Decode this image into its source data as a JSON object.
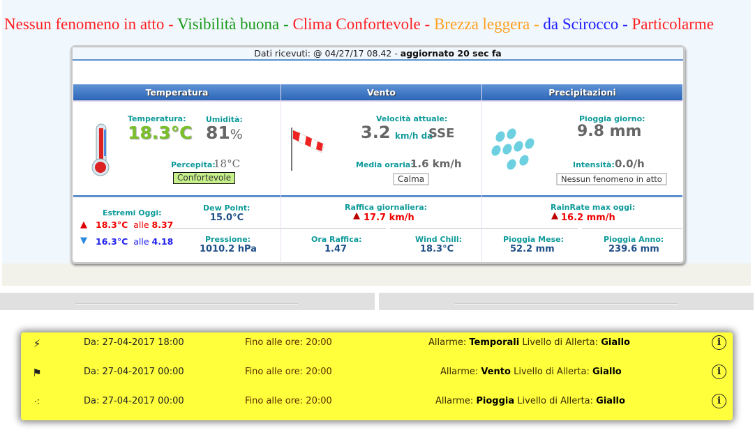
{
  "ticker": [
    {
      "text": "Nessun fenomeno in atto",
      "color": "#ff2020"
    },
    {
      "text": " - ",
      "color": "#ff2020"
    },
    {
      "text": "Visibilità buona",
      "color": "#1a9a1a"
    },
    {
      "text": " - ",
      "color": "#1a9a1a"
    },
    {
      "text": "Clima Confortevole",
      "color": "#ff2020"
    },
    {
      "text": " - ",
      "color": "#ff2020"
    },
    {
      "text": "Brezza leggera",
      "color": "#ffa020"
    },
    {
      "text": " - ",
      "color": "#ffa020"
    },
    {
      "text": "da Scirocco",
      "color": "#2020ff"
    },
    {
      "text": " - ",
      "color": "#2020ff"
    },
    {
      "text": "Particolarme",
      "color": "#ff2020"
    }
  ],
  "header": {
    "received_label": "Dati ricevuti: @ 04/27/17 08.42 - ",
    "updated": "aggiornato 20 sec fa"
  },
  "temperatura": {
    "title": "Temperatura",
    "temp_label": "Temperatura:",
    "temp": "18.3°C",
    "hum_label": "Umidità:",
    "hum": "81",
    "hum_unit": "%",
    "perc_label": "Percepita:",
    "perc": "18°C",
    "comfort": "Confortevole",
    "extremes_label": "Estremi Oggi:",
    "max": "18.3°C",
    "max_at": "alle",
    "max_time": "8.37",
    "min": "16.3°C",
    "min_at": "alle",
    "min_time": "4.18",
    "dew_label": "Dew Point:",
    "dew": "15.0°C",
    "press_label": "Pressione:",
    "press": "1010.2 hPa"
  },
  "vento": {
    "title": "Vento",
    "speed_label": "Velocità attuale:",
    "speed": "3.2",
    "speed_unit": "km/h da",
    "dir": "SSE",
    "avg_label": "Media oraria:",
    "avg": "1.6 km/h",
    "state": "Calma",
    "gust_label": "Raffica giornaliera:",
    "gust": "17.7 km/h",
    "gust_time_label": "Ora Raffica:",
    "gust_time": "1.47",
    "chill_label": "Wind Chill:",
    "chill": "18.3°C"
  },
  "precipitazioni": {
    "title": "Precipitazioni",
    "day_label": "Pioggia giorno:",
    "day": "9.8 mm",
    "int_label": "Intensità:",
    "int": "0.0/h",
    "state": "Nessun fenomeno in atto",
    "rr_label": "RainRate max oggi:",
    "rr": "16.2 mm/h",
    "month_label": "Pioggia Mese:",
    "month": "52.2 mm",
    "year_label": "Pioggia Anno:",
    "year": "239.6 mm"
  },
  "alerts": [
    {
      "icon": "lightning-icon",
      "from": "Da: 27-04-2017 18:00",
      "to": "Fino alle ore: 20:00",
      "pre": "Allarme: ",
      "type": "Temporali",
      "mid": " Livello di Allerta: ",
      "level": "Giallo"
    },
    {
      "icon": "windsock-icon",
      "from": "Da: 27-04-2017 00:00",
      "to": "Fino alle ore: 20:00",
      "pre": "Allarme: ",
      "type": "Vento",
      "mid": " Livello di Allerta: ",
      "level": "Giallo"
    },
    {
      "icon": "rain-icon",
      "from": "Da: 27-04-2017 00:00",
      "to": "Fino alle ore: 20:00",
      "pre": "Allarme: ",
      "type": "Pioggia",
      "mid": " Livello di Allerta: ",
      "level": "Giallo"
    }
  ],
  "info_glyph": "i"
}
